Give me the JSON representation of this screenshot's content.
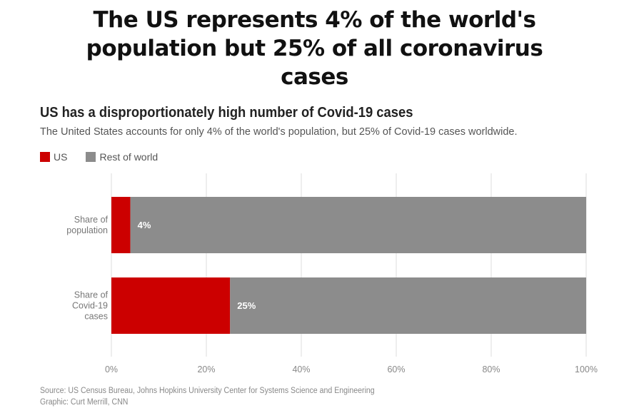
{
  "headline": {
    "lines": [
      "The US represents 4% of the world's",
      "population but 25% of all coronavirus",
      "cases"
    ]
  },
  "colors": {
    "us": "#cc0000",
    "rest": "#8c8c8c",
    "grid": "#dddddd"
  },
  "chart_data": {
    "type": "bar",
    "orientation": "horizontal",
    "stacked": true,
    "title": "US has a disproportionately high number of Covid-19 cases",
    "subtitle": "The United States accounts for only 4% of the world's population, but 25% of Covid-19 cases worldwide.",
    "categories": [
      [
        "Share of",
        "population"
      ],
      [
        "Share of",
        "Covid-19",
        "cases"
      ]
    ],
    "series": [
      {
        "name": "US",
        "values": [
          4,
          25
        ],
        "data_labels": [
          "4%",
          "25%"
        ]
      },
      {
        "name": "Rest of world",
        "values": [
          96,
          75
        ]
      }
    ],
    "xlim": [
      0,
      100
    ],
    "xticks": [
      "0%",
      "20%",
      "40%",
      "60%",
      "80%",
      "100%"
    ],
    "grid": true,
    "legend_position": "top-left"
  },
  "footer": {
    "source": "Source: US Census Bureau, Johns Hopkins University Center for Systems Science and Engineering",
    "graphic": "Graphic: Curt Merrill, CNN"
  }
}
